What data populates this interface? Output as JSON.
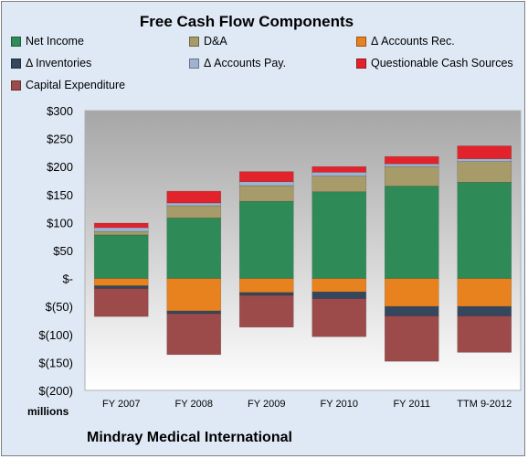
{
  "chart_data": {
    "type": "bar",
    "stacked": true,
    "title": "Free Cash Flow Components",
    "categories": [
      "FY 2007",
      "FY 2008",
      "FY 2009",
      "FY 2010",
      "FY 2011",
      "TTM 9-2012"
    ],
    "ylim": [
      -200,
      300
    ],
    "yticks": [
      300,
      250,
      200,
      150,
      100,
      50,
      0,
      -50,
      -100,
      -150,
      -200
    ],
    "ytick_labels": [
      "$300",
      "$250",
      "$200",
      "$150",
      "$100",
      "$50",
      "$-",
      "$(50)",
      "$(100)",
      "$(150)",
      "$(200)"
    ],
    "units_label": "millions",
    "grid": false,
    "legend_position": "top",
    "series": [
      {
        "name": "Net Income",
        "color": "#2e8b57",
        "values": [
          78,
          108,
          138,
          155,
          165,
          172
        ]
      },
      {
        "name": "D&A",
        "color": "#a89b6a",
        "values": [
          6,
          22,
          28,
          28,
          35,
          37
        ]
      },
      {
        "name": "Δ Accounts Rec.",
        "color": "#e8821e",
        "values": [
          -13,
          -58,
          -25,
          -24,
          -50,
          -50
        ]
      },
      {
        "name": "Δ Inventories",
        "color": "#34475e",
        "values": [
          -5,
          -5,
          -5,
          -12,
          -17,
          -17
        ]
      },
      {
        "name": "Δ Accounts Pay.",
        "color": "#9fb3d1",
        "values": [
          7,
          5,
          7,
          7,
          5,
          5
        ]
      },
      {
        "name": "Questionable Cash Sources",
        "color": "#e3232b",
        "values": [
          8,
          21,
          18,
          10,
          13,
          23
        ]
      },
      {
        "name": "Capital Expenditure",
        "color": "#9c4a4a",
        "values": [
          -50,
          -73,
          -57,
          -68,
          -81,
          -65
        ]
      }
    ]
  },
  "footer": "Mindray Medical International"
}
